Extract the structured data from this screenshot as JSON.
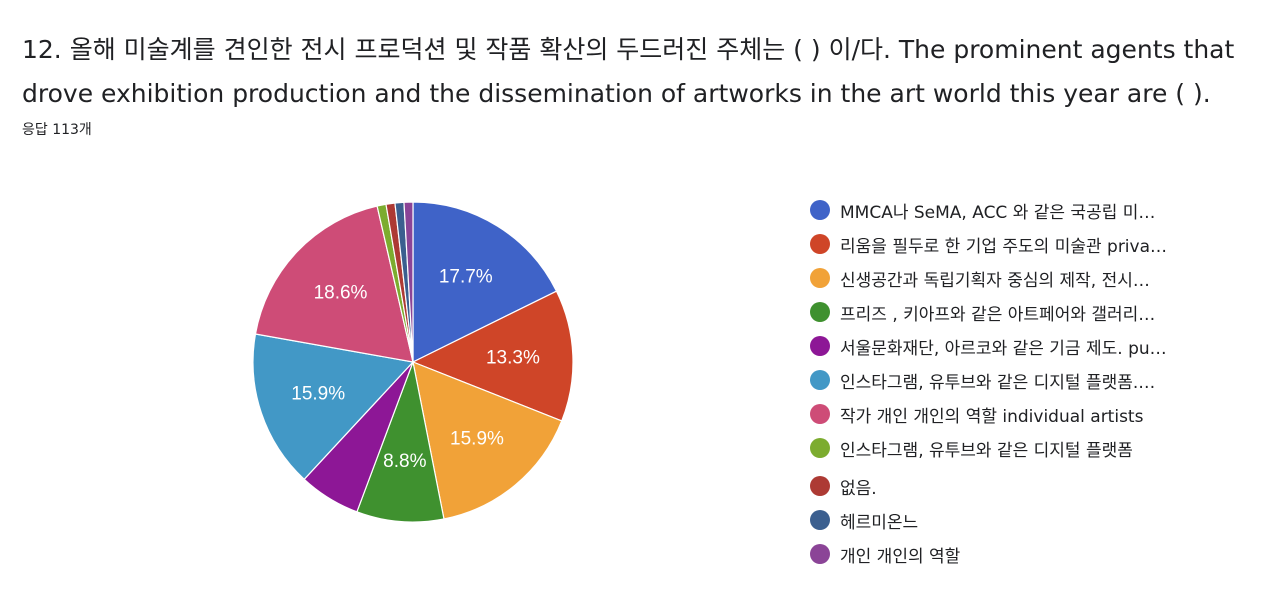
{
  "question": {
    "title": "12. 올해 미술계를 견인한 전시 프로덕션 및 작품 확산의 두드러진 주체는 (      ) 이/다. The prominent agents that drove exhibition production and the dissemination of artworks in the art world this year are (  ).",
    "response_count": "응답 113개"
  },
  "chart_data": {
    "type": "pie",
    "title": "",
    "start_angle_deg": 90,
    "direction": "clockwise",
    "legend_position": "right",
    "slices": [
      {
        "label": "MMCA나 SeMA, ACC 와 같은 국공립 미…",
        "value": 17.7,
        "pct_label": "17.7%",
        "color": "#3f63c8"
      },
      {
        "label": "리움을 필두로 한 기업 주도의 미술관 priva…",
        "value": 13.3,
        "pct_label": "13.3%",
        "color": "#cf4528"
      },
      {
        "label": "신생공간과 독립기획자 중심의 제작, 전시…",
        "value": 15.9,
        "pct_label": "15.9%",
        "color": "#f1a238"
      },
      {
        "label": "프리즈 , 키아프와 같은 아트페어와 갤러리…",
        "value": 8.8,
        "pct_label": "8.8%",
        "color": "#3f912f"
      },
      {
        "label": "서울문화재단, 아르코와 같은 기금 제도. pu…",
        "value": 6.2,
        "pct_label": "",
        "color": "#8d1796"
      },
      {
        "label": "인스타그램, 유투브와 같은 디지털 플랫폼.…",
        "value": 15.9,
        "pct_label": "15.9%",
        "color": "#4298c6"
      },
      {
        "label": "작가 개인 개인의 역할 individual artists",
        "value": 18.6,
        "pct_label": "18.6%",
        "color": "#ce4c77"
      },
      {
        "label": "인스타그램, 유투브와 같은 디지털 플랫폼",
        "value": 0.9,
        "pct_label": "",
        "color": "#7cac2f"
      },
      {
        "label": "없음.",
        "value": 0.9,
        "pct_label": "",
        "color": "#ad3a34"
      },
      {
        "label": "헤르미온느",
        "value": 0.9,
        "pct_label": "",
        "color": "#3b5f8f"
      },
      {
        "label": "개인 개인의 역할",
        "value": 0.9,
        "pct_label": "",
        "color": "#8b4497"
      }
    ]
  }
}
